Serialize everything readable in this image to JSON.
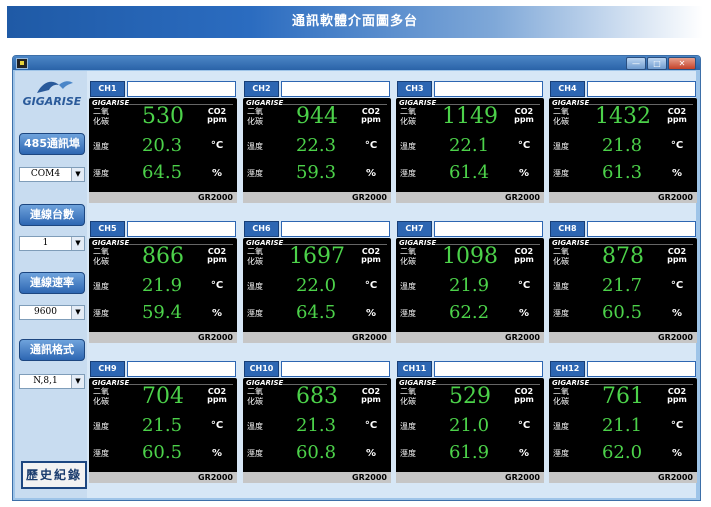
{
  "banner": {
    "title": "通訊軟體介面圖多台"
  },
  "window": {
    "controls": [
      "minimize",
      "maximize",
      "close"
    ]
  },
  "sidebar": {
    "logo_text": "GIGARISE",
    "port_button": "485通訊埠",
    "port_value": "COM4",
    "count_button": "連線台數",
    "count_value": "1",
    "speed_button": "連線速率",
    "speed_value": "9600",
    "format_button": "通訊格式",
    "format_value": "N,8,1",
    "history_button": "歷史紀錄"
  },
  "labels": {
    "co2_line1": "二氧",
    "co2_line2": "化碳",
    "temp": "溫度",
    "humidity": "溼度",
    "co2_unit_top": "CO2",
    "co2_unit_bottom": "ppm",
    "temp_unit": "°C",
    "humidity_unit": "%",
    "brand": "GIGARISE",
    "model": "GR2000"
  },
  "channels": [
    {
      "label": "CH1",
      "co2": "530",
      "temp": "20.3",
      "humidity": "64.5"
    },
    {
      "label": "CH2",
      "co2": "944",
      "temp": "22.3",
      "humidity": "59.3"
    },
    {
      "label": "CH3",
      "co2": "1149",
      "temp": "22.1",
      "humidity": "61.4"
    },
    {
      "label": "CH4",
      "co2": "1432",
      "temp": "21.8",
      "humidity": "61.3"
    },
    {
      "label": "CH5",
      "co2": "866",
      "temp": "21.9",
      "humidity": "59.4"
    },
    {
      "label": "CH6",
      "co2": "1697",
      "temp": "22.0",
      "humidity": "64.5"
    },
    {
      "label": "CH7",
      "co2": "1098",
      "temp": "21.9",
      "humidity": "62.2"
    },
    {
      "label": "CH8",
      "co2": "878",
      "temp": "21.7",
      "humidity": "60.5"
    },
    {
      "label": "CH9",
      "co2": "704",
      "temp": "21.5",
      "humidity": "60.5"
    },
    {
      "label": "CH10",
      "co2": "683",
      "temp": "21.3",
      "humidity": "60.8"
    },
    {
      "label": "CH11",
      "co2": "529",
      "temp": "21.0",
      "humidity": "61.9"
    },
    {
      "label": "CH12",
      "co2": "761",
      "temp": "21.1",
      "humidity": "62.0"
    }
  ]
}
